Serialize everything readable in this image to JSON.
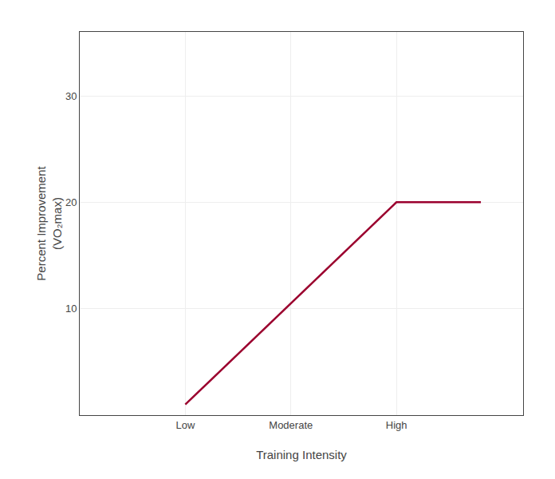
{
  "chart_data": {
    "type": "line",
    "xlabel": "Training Intensity",
    "ylabel": "Percent Improvement\n(VO₂max)",
    "x": [
      1,
      3,
      3.8
    ],
    "values": [
      1,
      20,
      20
    ],
    "color": "#9b002e",
    "xlim": [
      0,
      4.2
    ],
    "xticks": [
      {
        "value": 1,
        "label": "Low"
      },
      {
        "value": 2,
        "label": "Moderate"
      },
      {
        "value": 3,
        "label": "High"
      }
    ],
    "ylim": [
      0,
      36
    ],
    "yticks": [
      10,
      20,
      30
    ],
    "grid": true
  }
}
